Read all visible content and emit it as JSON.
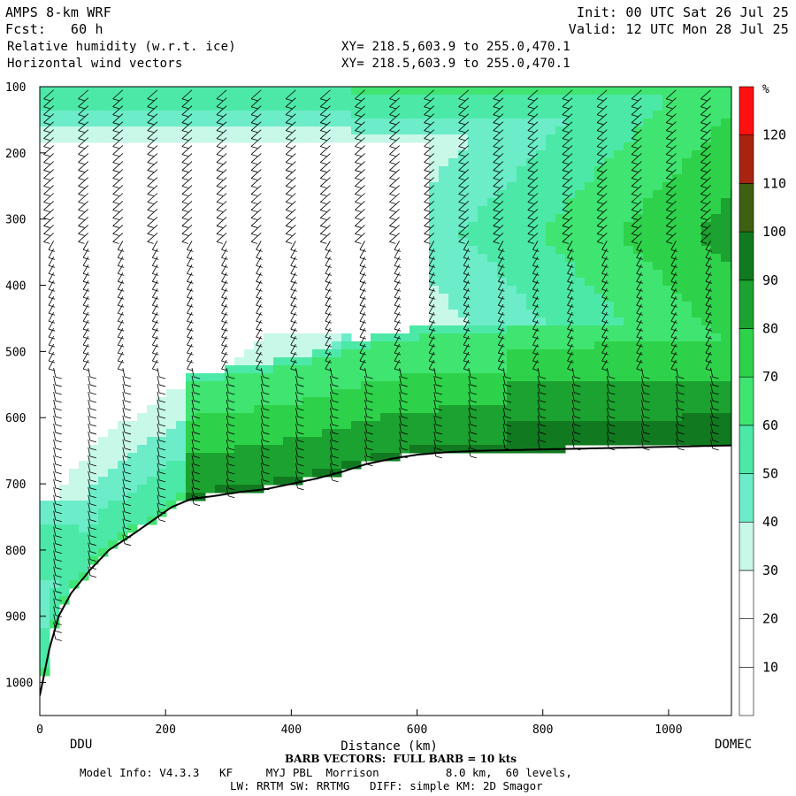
{
  "header": {
    "model": "AMPS 8-km WRF",
    "forecast": "Fcst:   60 h",
    "field1": "Relative humidity (w.r.t. ice)",
    "field2": "Horizontal wind vectors",
    "init": "Init: 00 UTC Sat 26 Jul 25",
    "valid": "Valid: 12 UTC Mon 28 Jul 25",
    "xy1": "XY= 218.5,603.9 to 255.0,470.1",
    "xy2": "XY= 218.5,603.9 to 255.0,470.1"
  },
  "locations": {
    "left": "DDU",
    "right": "DOMEC"
  },
  "footer": {
    "barb": "BARB VECTORS:  FULL BARB = 10 kts",
    "line1": "Model Info: V4.3.3   KF     MYJ PBL  Morrison          8.0 km,  60 levels,",
    "line2": "LW: RRTM SW: RRTMG   DIFF: simple KM: 2D Smagor"
  },
  "colors": {
    "background": "#ffffff",
    "rh_bands": [
      "#ffffff",
      "#ffffff",
      "#ffffff",
      "#c8f8e8",
      "#6cecc8",
      "#4ce8a8",
      "#40e470",
      "#2ed24a",
      "#1ca230",
      "#117a20",
      "#3e6010",
      "#a62410",
      "#ff1010"
    ]
  },
  "chart_data": {
    "type": "heatmap",
    "title": "Relative humidity (w.r.t. ice)",
    "overlay": "Horizontal wind vectors",
    "xlabel": "Distance (km)",
    "ylabel": "",
    "xlim": [
      0,
      1100
    ],
    "ylim": [
      1050,
      100
    ],
    "x_ticks": [
      0,
      200,
      400,
      600,
      800,
      1000
    ],
    "y_ticks": [
      100,
      200,
      300,
      400,
      500,
      600,
      700,
      800,
      900,
      1000
    ],
    "colorbar": {
      "unit": "%",
      "levels": [
        10,
        20,
        30,
        40,
        50,
        60,
        70,
        80,
        90,
        100,
        110,
        120
      ]
    },
    "terrain_surface_pressure": {
      "x": [
        0,
        15,
        30,
        50,
        80,
        110,
        150,
        180,
        210,
        240,
        280,
        320,
        360,
        400,
        440,
        480,
        520,
        560,
        600,
        650,
        700,
        750,
        800,
        850,
        900,
        950,
        1000,
        1050,
        1100
      ],
      "p": [
        1020,
        950,
        900,
        865,
        830,
        800,
        775,
        755,
        735,
        723,
        718,
        712,
        708,
        700,
        692,
        682,
        670,
        662,
        656,
        652,
        650,
        649,
        648,
        647,
        646,
        645,
        644,
        643,
        642
      ]
    },
    "wind_barb_columns_km": [
      22,
      77,
      132,
      187,
      242,
      297,
      352,
      407,
      462,
      517,
      572,
      627,
      682,
      737,
      792,
      847,
      902,
      957,
      1012,
      1067
    ]
  }
}
